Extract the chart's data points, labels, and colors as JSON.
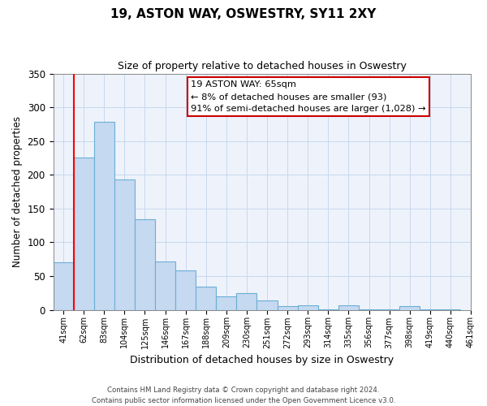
{
  "title": "19, ASTON WAY, OSWESTRY, SY11 2XY",
  "subtitle": "Size of property relative to detached houses in Oswestry",
  "xlabel": "Distribution of detached houses by size in Oswestry",
  "ylabel": "Number of detached properties",
  "bins": [
    "41sqm",
    "62sqm",
    "83sqm",
    "104sqm",
    "125sqm",
    "146sqm",
    "167sqm",
    "188sqm",
    "209sqm",
    "230sqm",
    "251sqm",
    "272sqm",
    "293sqm",
    "314sqm",
    "335sqm",
    "356sqm",
    "377sqm",
    "398sqm",
    "419sqm",
    "440sqm",
    "461sqm"
  ],
  "values": [
    70,
    225,
    278,
    193,
    134,
    72,
    58,
    34,
    20,
    25,
    14,
    5,
    7,
    1,
    7,
    1,
    1,
    6,
    1,
    1
  ],
  "bar_color": "#c5d9f0",
  "bar_edge_color": "#6baed6",
  "annotation_title": "19 ASTON WAY: 65sqm",
  "annotation_line1": "← 8% of detached houses are smaller (93)",
  "annotation_line2": "91% of semi-detached houses are larger (1,028) →",
  "annotation_box_color": "#ffffff",
  "annotation_box_edge": "#cc0000",
  "ylim": [
    0,
    350
  ],
  "yticks": [
    0,
    50,
    100,
    150,
    200,
    250,
    300,
    350
  ],
  "footer_line1": "Contains HM Land Registry data © Crown copyright and database right 2024.",
  "footer_line2": "Contains public sector information licensed under the Open Government Licence v3.0."
}
